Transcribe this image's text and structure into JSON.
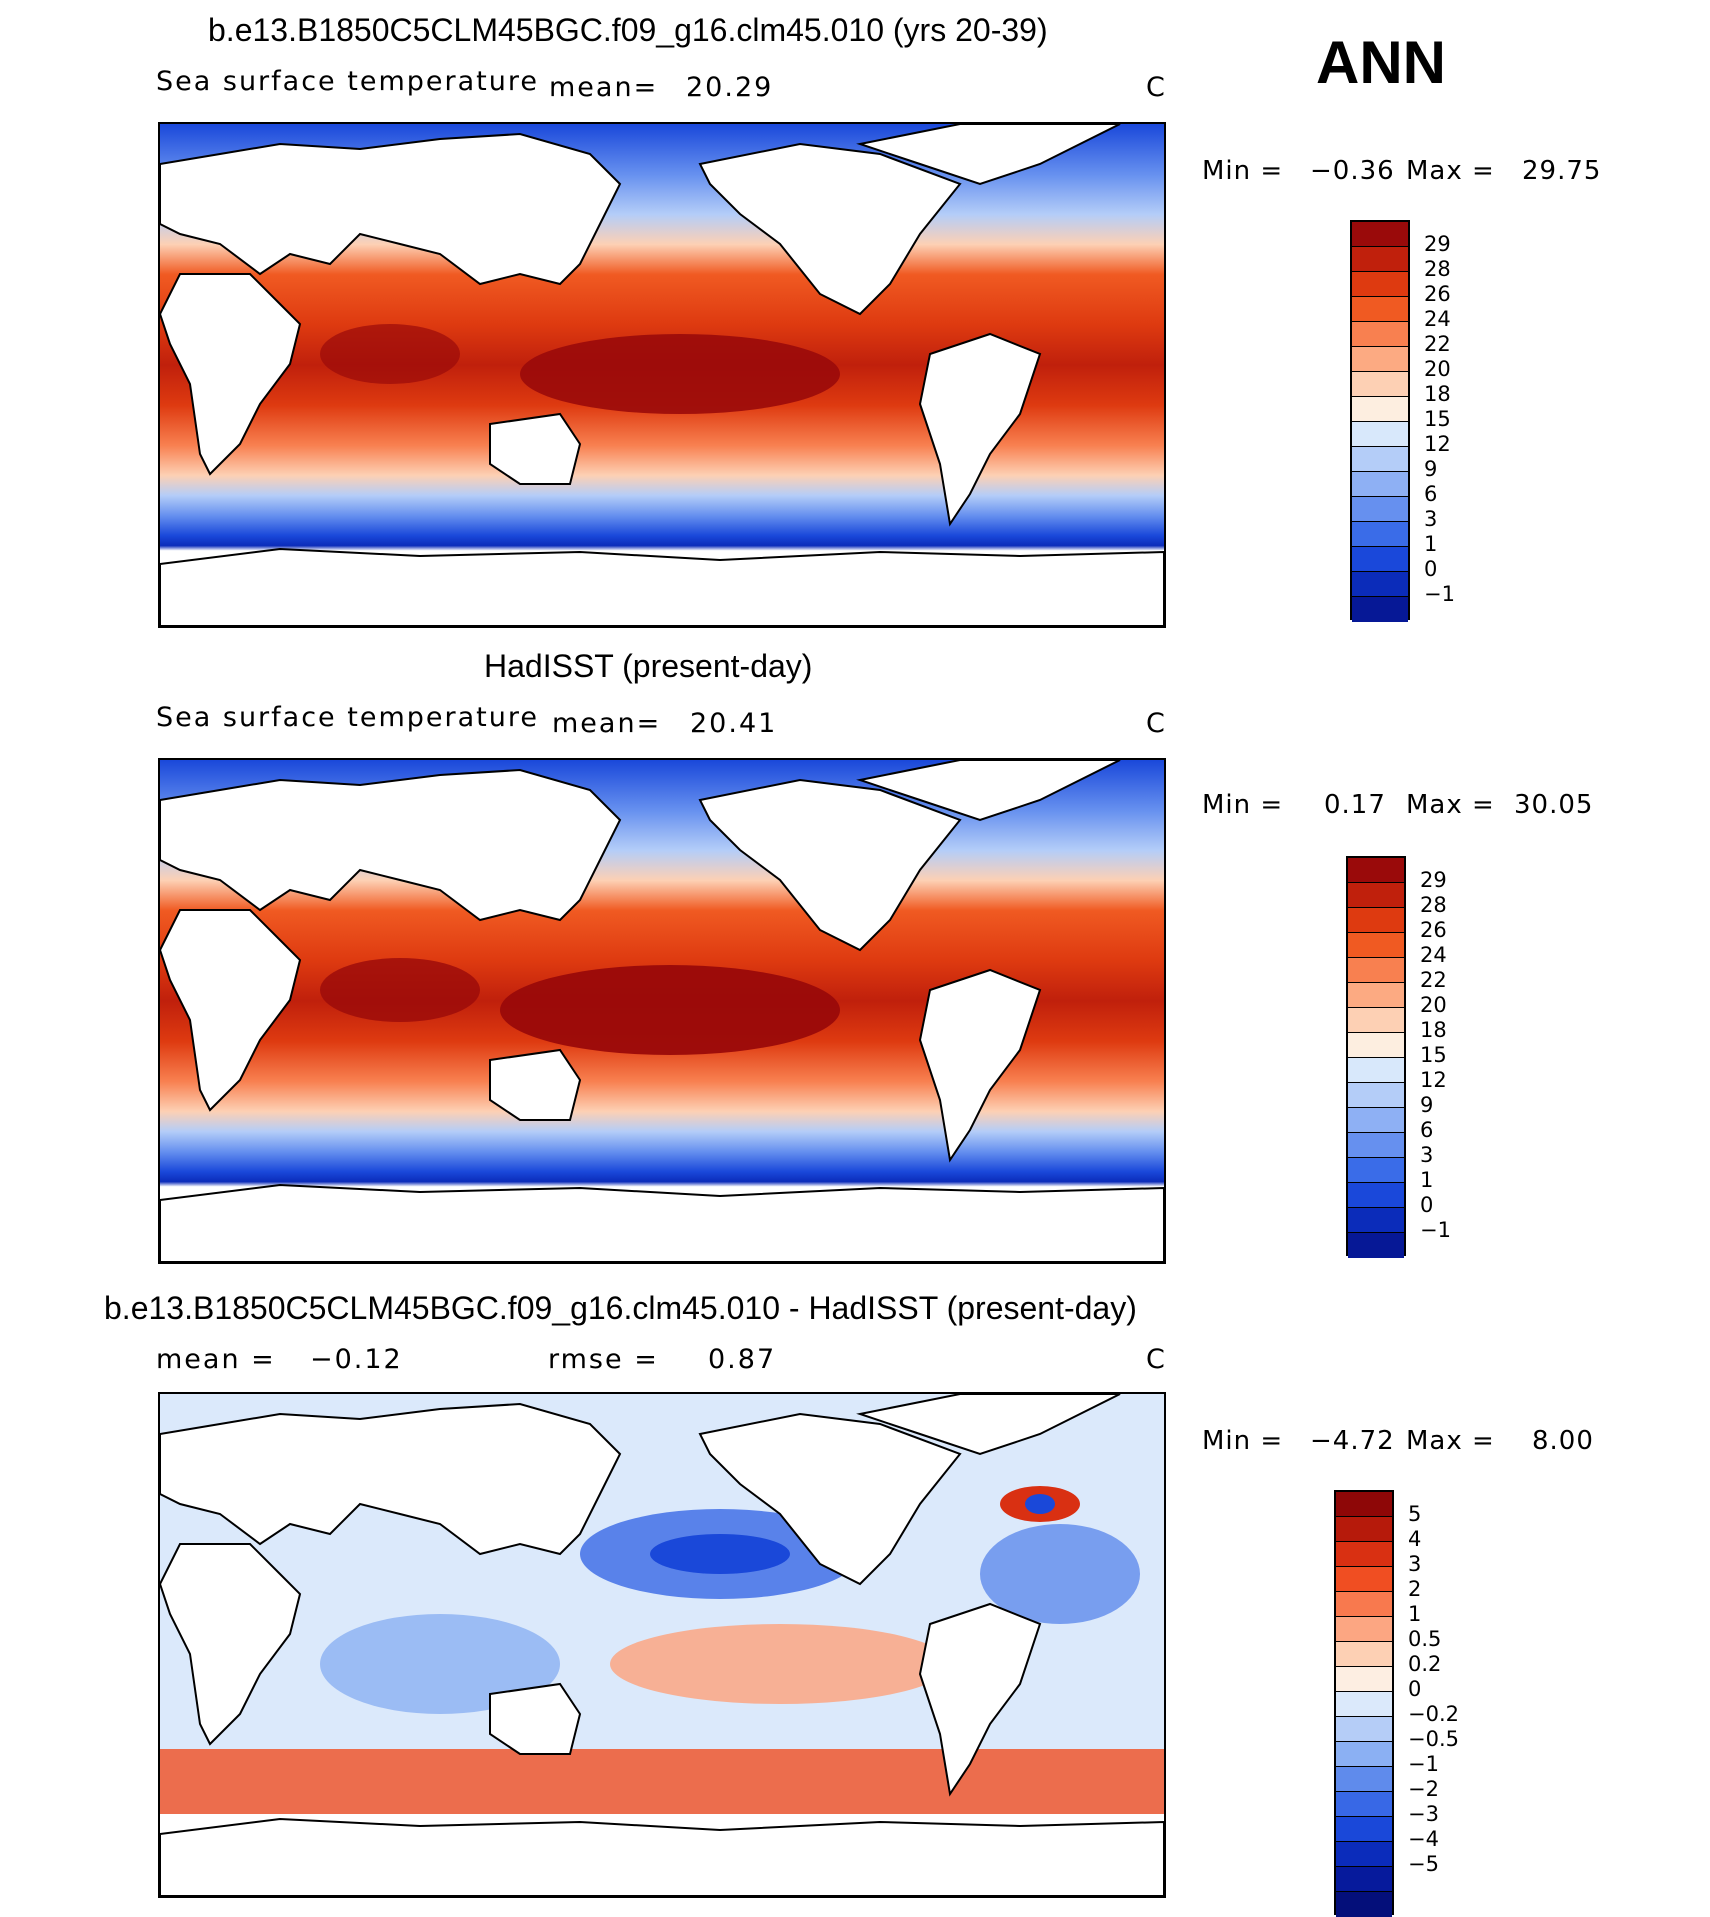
{
  "season": "ANN",
  "colors": {
    "sst_scale": [
      "#9a0a0a",
      "#c0200c",
      "#de3a10",
      "#f05a22",
      "#f88050",
      "#fcaa82",
      "#fdd0b4",
      "#fdeee0",
      "#d8e8fb",
      "#b4cdf8",
      "#8eb0f4",
      "#6690ef",
      "#3a6ce8",
      "#1a48da",
      "#0b2cba",
      "#061896"
    ],
    "diff_scale": [
      "#8e0707",
      "#b61a0b",
      "#d93012",
      "#f04e22",
      "#f8794e",
      "#fca682",
      "#fdd0b4",
      "#fdeee2",
      "#dbe9fb",
      "#b5cdf7",
      "#8bb0f3",
      "#5f8bec",
      "#3868e6",
      "#1a48d9",
      "#0b2cbb",
      "#061a9c",
      "#040f7a"
    ]
  },
  "panels": [
    {
      "title": "b.e13.B1850C5CLM45BGC.f09_g16.clm45.010 (yrs 20-39)",
      "left_label": "Sea surface temperature",
      "mean_label": "mean=",
      "mean_value": "20.29",
      "unit": "C",
      "min_label": "Min =",
      "min_value": "−0.36",
      "max_label": "Max =",
      "max_value": "29.75",
      "colorbar_ticks": [
        "29",
        "28",
        "26",
        "24",
        "22",
        "20",
        "18",
        "15",
        "12",
        "9",
        "6",
        "3",
        "1",
        "0",
        "−1"
      ]
    },
    {
      "title": "HadISST (present-day)",
      "left_label": "Sea surface temperature",
      "mean_label": "mean=",
      "mean_value": "20.41",
      "unit": "C",
      "min_label": "Min =",
      "min_value": "0.17",
      "max_label": "Max =",
      "max_value": "30.05",
      "colorbar_ticks": [
        "29",
        "28",
        "26",
        "24",
        "22",
        "20",
        "18",
        "15",
        "12",
        "9",
        "6",
        "3",
        "1",
        "0",
        "−1"
      ]
    },
    {
      "title": "b.e13.B1850C5CLM45BGC.f09_g16.clm45.010 - HadISST (present-day)",
      "left_label": "mean =",
      "mean_label": "",
      "mean_value": "−0.12",
      "rmse_label": "rmse =",
      "rmse_value": "0.87",
      "unit": "C",
      "min_label": "Min =",
      "min_value": "−4.72",
      "max_label": "Max =",
      "max_value": "8.00",
      "colorbar_ticks": [
        "5",
        "4",
        "3",
        "2",
        "1",
        "0.5",
        "0.2",
        "0",
        "−0.2",
        "−0.5",
        "−1",
        "−2",
        "−3",
        "−4",
        "−5"
      ]
    }
  ],
  "chart_data": [
    {
      "type": "heatmap",
      "title": "b.e13.B1850C5CLM45BGC.f09_g16.clm45.010 (yrs 20-39)",
      "subtitle": "Sea surface temperature",
      "unit": "C",
      "mean": 20.29,
      "min": -0.36,
      "max": 29.75,
      "levels": [
        -1,
        0,
        1,
        3,
        6,
        9,
        12,
        15,
        18,
        20,
        22,
        24,
        26,
        28,
        29
      ]
    },
    {
      "type": "heatmap",
      "title": "HadISST (present-day)",
      "subtitle": "Sea surface temperature",
      "unit": "C",
      "mean": 20.41,
      "min": 0.17,
      "max": 30.05,
      "levels": [
        -1,
        0,
        1,
        3,
        6,
        9,
        12,
        15,
        18,
        20,
        22,
        24,
        26,
        28,
        29
      ]
    },
    {
      "type": "heatmap",
      "title": "b.e13.B1850C5CLM45BGC.f09_g16.clm45.010 - HadISST (present-day)",
      "unit": "C",
      "mean": -0.12,
      "rmse": 0.87,
      "min": -4.72,
      "max": 8.0,
      "levels": [
        -5,
        -4,
        -3,
        -2,
        -1,
        -0.5,
        -0.2,
        0,
        0.2,
        0.5,
        1,
        2,
        3,
        4,
        5
      ]
    }
  ]
}
